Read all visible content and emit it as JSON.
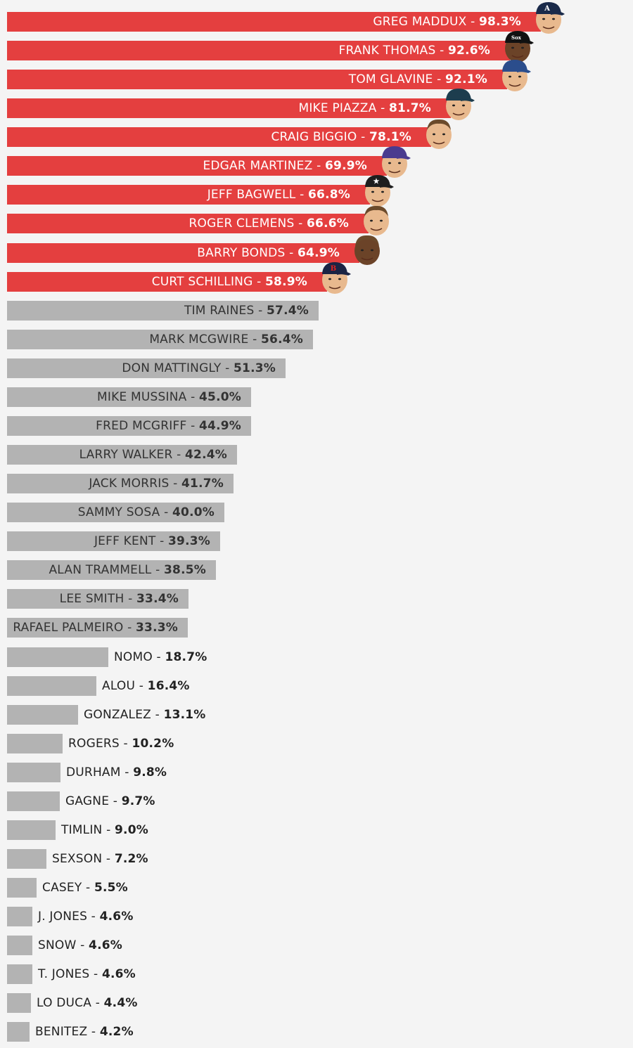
{
  "colors": {
    "elected": "#e43f3f",
    "not_elected": "#b3b3b3",
    "background": "#f4f4f4",
    "face_skin": "#e8b98e",
    "face_skin_dark": "#6b4328"
  },
  "chart_data": {
    "type": "bar",
    "orientation": "horizontal",
    "title": "",
    "xlabel": "",
    "ylabel": "",
    "xlim": [
      0,
      100
    ],
    "categories": [
      "GREG MADDUX",
      "FRANK THOMAS",
      "TOM GLAVINE",
      "MIKE PIAZZA",
      "CRAIG BIGGIO",
      "EDGAR MARTINEZ",
      "JEFF BAGWELL",
      "ROGER CLEMENS",
      "BARRY BONDS",
      "CURT SCHILLING",
      "TIM RAINES",
      "MARK MCGWIRE",
      "DON MATTINGLY",
      "MIKE MUSSINA",
      "FRED MCGRIFF",
      "LARRY WALKER",
      "JACK MORRIS",
      "SAMMY SOSA",
      "JEFF KENT",
      "ALAN TRAMMELL",
      "LEE SMITH",
      "RAFAEL PALMEIRO",
      "NOMO",
      "ALOU",
      "GONZALEZ",
      "ROGERS",
      "DURHAM",
      "GAGNE",
      "TIMLIN",
      "SEXSON",
      "CASEY",
      "J. JONES",
      "SNOW",
      "T. JONES",
      "LO DUCA",
      "BENITEZ"
    ],
    "values": [
      98.3,
      92.6,
      92.1,
      81.7,
      78.1,
      69.9,
      66.8,
      66.6,
      64.9,
      58.9,
      57.4,
      56.4,
      51.3,
      45.0,
      44.9,
      42.4,
      41.7,
      40.0,
      39.3,
      38.5,
      33.4,
      33.3,
      18.7,
      16.4,
      13.1,
      10.2,
      9.8,
      9.7,
      9.0,
      7.2,
      5.5,
      4.6,
      4.6,
      4.6,
      4.4,
      4.2
    ],
    "value_labels": [
      "98.3%",
      "92.6%",
      "92.1%",
      "81.7%",
      "78.1%",
      "69.9%",
      "66.8%",
      "66.6%",
      "64.9%",
      "58.9%",
      "57.4%",
      "56.4%",
      "51.3%",
      "45.0%",
      "44.9%",
      "42.4%",
      "41.7%",
      "40.0%",
      "39.3%",
      "38.5%",
      "33.4%",
      "33.3%",
      "18.7%",
      "16.4%",
      "13.1%",
      "10.2%",
      "9.8%",
      "9.7%",
      "9.0%",
      "7.2%",
      "5.5%",
      "4.6%",
      "4.6%",
      "4.6%",
      "4.4%",
      "4.2%"
    ],
    "separator": " - ",
    "highlighted_count": 10,
    "grid": false,
    "legend": "none",
    "player_photos": [
      {
        "name": "GREG MADDUX",
        "cap": "#1a2a4a",
        "logo": "A"
      },
      {
        "name": "FRANK THOMAS",
        "cap": "#111111",
        "logo": "Sox"
      },
      {
        "name": "TOM GLAVINE",
        "cap": "#2b4d8c",
        "logo": ""
      },
      {
        "name": "MIKE PIAZZA",
        "cap": "#1d3d4e",
        "logo": ""
      },
      {
        "name": "CRAIG BIGGIO",
        "cap": "",
        "logo": ""
      },
      {
        "name": "EDGAR MARTINEZ",
        "cap": "#4a3b8f",
        "logo": ""
      },
      {
        "name": "JEFF BAGWELL",
        "cap": "#1e1e1e",
        "logo": "★"
      },
      {
        "name": "ROGER CLEMENS",
        "cap": "",
        "logo": ""
      },
      {
        "name": "BARRY BONDS",
        "cap": "",
        "logo": ""
      },
      {
        "name": "CURT SCHILLING",
        "cap": "#1b2444",
        "logo": "B"
      }
    ]
  }
}
